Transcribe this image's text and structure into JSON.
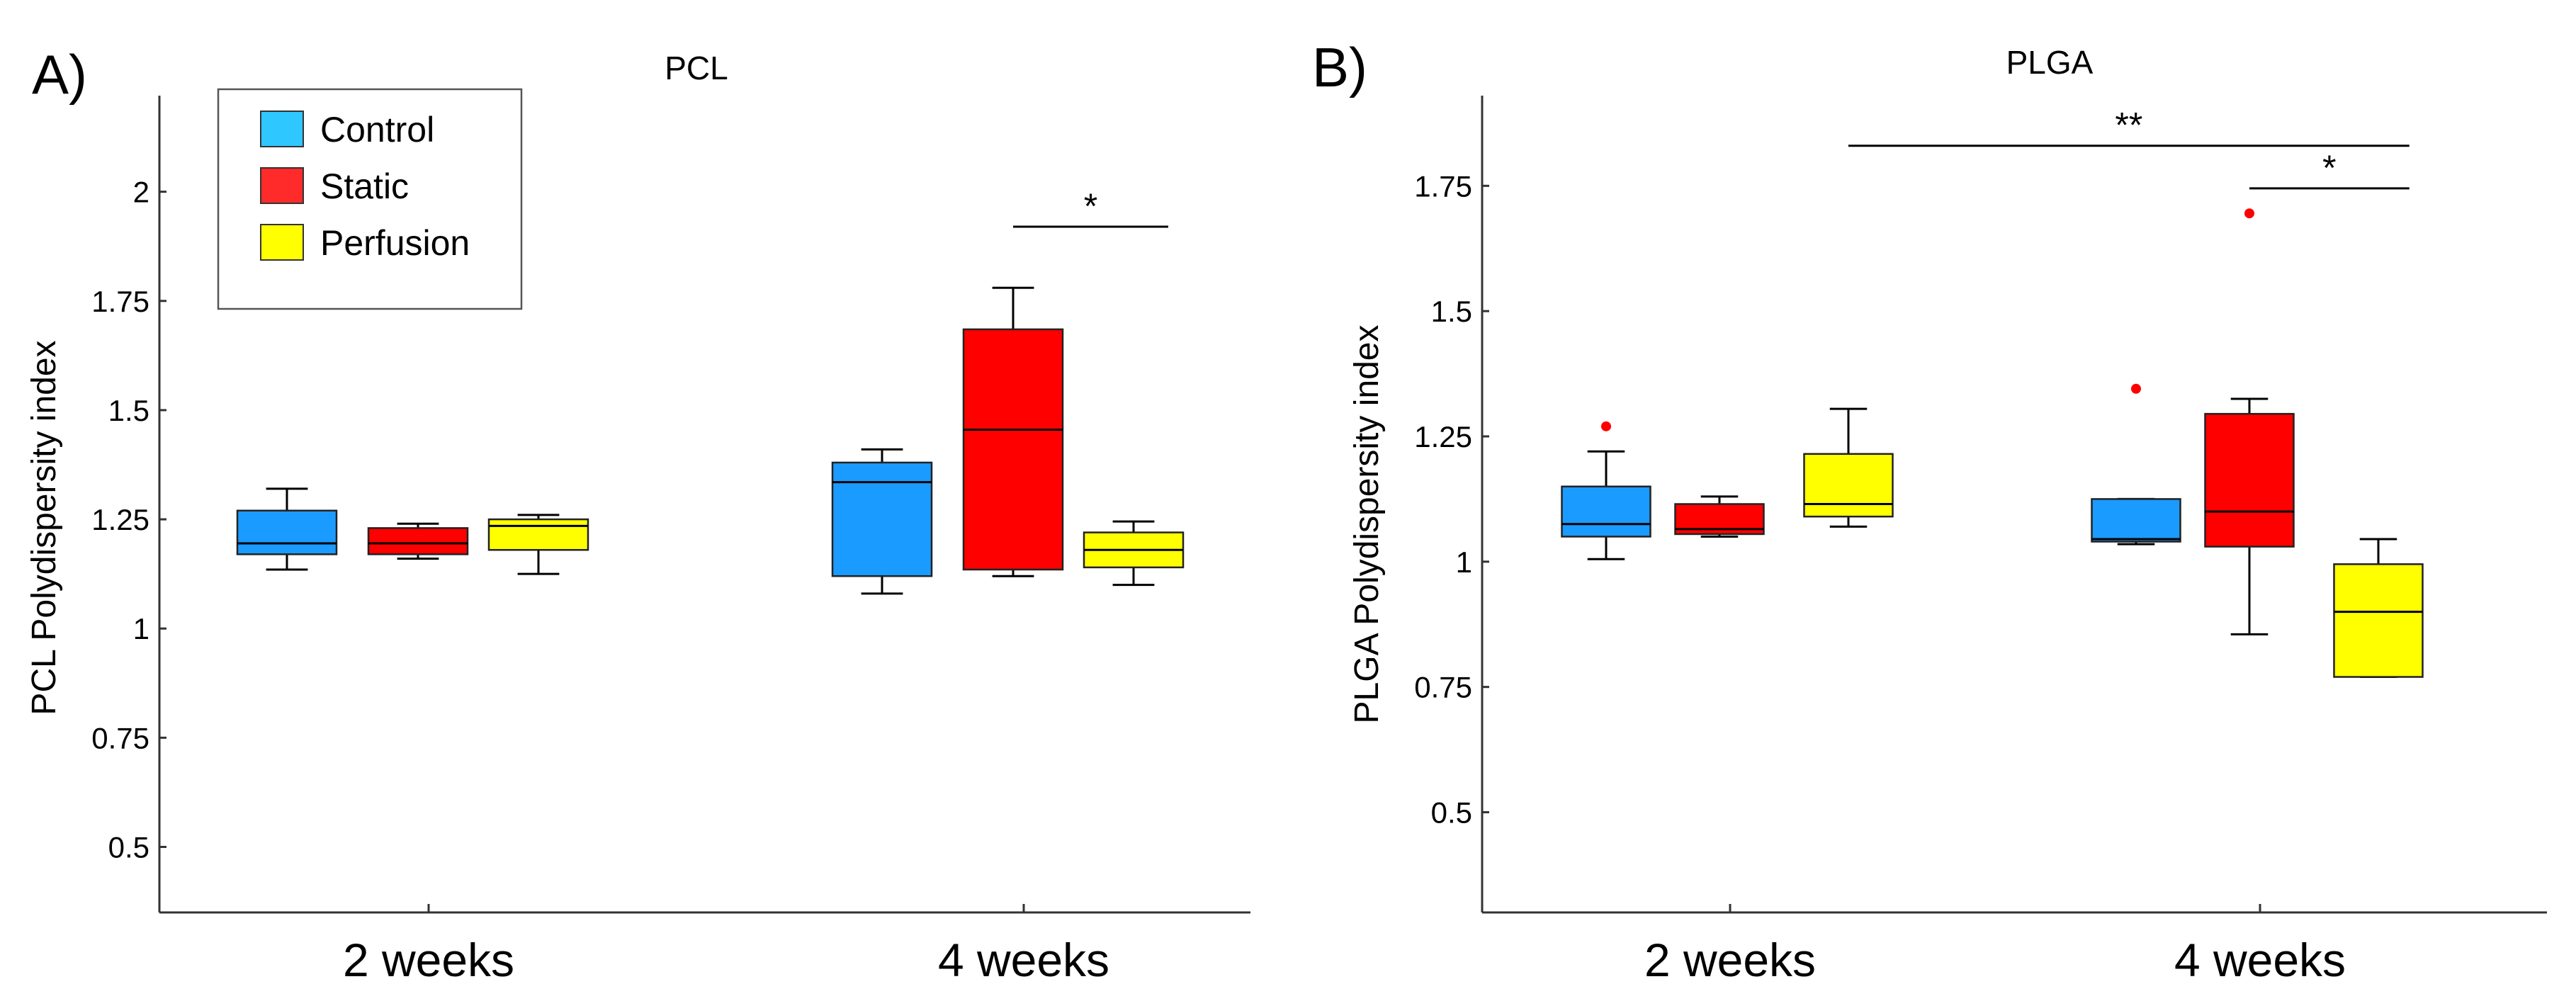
{
  "chart_data": [
    {
      "type": "boxplot",
      "panel_label": "A)",
      "title": "PCL",
      "xlabel": "",
      "ylabel": "PCL Polydispersity index",
      "ylim": [
        0.35,
        2.22
      ],
      "yticks": [
        0.5,
        0.75,
        1,
        1.25,
        1.5,
        1.75,
        2
      ],
      "ytick_labels": [
        "0.5",
        "0.75",
        "1",
        "1.25",
        "1.5",
        "1.75",
        "2"
      ],
      "categories": [
        "2 weeks",
        "4 weeks"
      ],
      "series": [
        {
          "name": "Control",
          "color": "#1a9bff",
          "boxes": [
            {
              "whisker_low": 1.135,
              "q1": 1.17,
              "median": 1.195,
              "q3": 1.27,
              "whisker_high": 1.32,
              "outliers": []
            },
            {
              "whisker_low": 1.08,
              "q1": 1.12,
              "median": 1.335,
              "q3": 1.38,
              "whisker_high": 1.41,
              "outliers": []
            }
          ]
        },
        {
          "name": "Static",
          "color": "#ff0000",
          "boxes": [
            {
              "whisker_low": 1.16,
              "q1": 1.17,
              "median": 1.195,
              "q3": 1.23,
              "whisker_high": 1.24,
              "outliers": []
            },
            {
              "whisker_low": 1.12,
              "q1": 1.135,
              "median": 1.455,
              "q3": 1.685,
              "whisker_high": 1.78,
              "outliers": []
            }
          ]
        },
        {
          "name": "Perfusion",
          "color": "#ffff00",
          "boxes": [
            {
              "whisker_low": 1.125,
              "q1": 1.18,
              "median": 1.235,
              "q3": 1.25,
              "whisker_high": 1.26,
              "outliers": []
            },
            {
              "whisker_low": 1.1,
              "q1": 1.14,
              "median": 1.18,
              "q3": 1.22,
              "whisker_high": 1.245,
              "outliers": []
            }
          ]
        }
      ],
      "legend": {
        "entries": [
          "Control",
          "Static",
          "Perfusion"
        ],
        "placement": "top-left"
      },
      "significance": [
        {
          "label": "*",
          "from": {
            "category": 1,
            "series": 1
          },
          "to": {
            "category": 1,
            "series": 2
          },
          "y": 1.92
        }
      ]
    },
    {
      "type": "boxplot",
      "panel_label": "B)",
      "title": "PLGA",
      "xlabel": "",
      "ylabel": "PLGA Polydispersity index",
      "ylim": [
        0.3,
        1.93
      ],
      "yticks": [
        0.5,
        0.75,
        1,
        1.25,
        1.5,
        1.75
      ],
      "ytick_labels": [
        "0.5",
        "0.75",
        "1",
        "1.25",
        "1.5",
        "1.75"
      ],
      "categories": [
        "2 weeks",
        "4 weeks"
      ],
      "series": [
        {
          "name": "Control",
          "color": "#1a9bff",
          "boxes": [
            {
              "whisker_low": 1.005,
              "q1": 1.05,
              "median": 1.075,
              "q3": 1.15,
              "whisker_high": 1.22,
              "outliers": [
                1.27
              ]
            },
            {
              "whisker_low": 1.035,
              "q1": 1.04,
              "median": 1.045,
              "q3": 1.125,
              "whisker_high": 1.125,
              "outliers": [
                1.345
              ]
            }
          ]
        },
        {
          "name": "Static",
          "color": "#ff0000",
          "boxes": [
            {
              "whisker_low": 1.05,
              "q1": 1.055,
              "median": 1.065,
              "q3": 1.115,
              "whisker_high": 1.13,
              "outliers": []
            },
            {
              "whisker_low": 0.855,
              "q1": 1.03,
              "median": 1.1,
              "q3": 1.295,
              "whisker_high": 1.325,
              "outliers": [
                1.695
              ]
            }
          ]
        },
        {
          "name": "Perfusion",
          "color": "#ffff00",
          "boxes": [
            {
              "whisker_low": 1.07,
              "q1": 1.09,
              "median": 1.115,
              "q3": 1.215,
              "whisker_high": 1.305,
              "outliers": []
            },
            {
              "whisker_low": 0.77,
              "q1": 0.77,
              "median": 0.9,
              "q3": 0.995,
              "whisker_high": 1.045,
              "outliers": []
            }
          ]
        }
      ],
      "significance": [
        {
          "label": "**",
          "from": {
            "category": 0,
            "series": 2
          },
          "to": {
            "category": 1,
            "series": 2
          },
          "y": 1.83
        },
        {
          "label": "*",
          "from": {
            "category": 1,
            "series": 1
          },
          "to": {
            "category": 1,
            "series": 2
          },
          "y": 1.745
        }
      ]
    }
  ]
}
